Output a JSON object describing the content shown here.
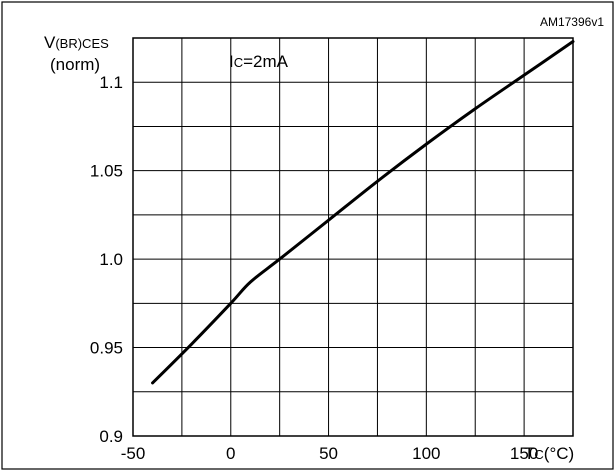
{
  "figure_id": "AM17396v1",
  "ylabel": {
    "symbol": "V",
    "subscript": "(BR)CES",
    "unit": "(norm)"
  },
  "xlabel": {
    "symbol": "T",
    "subscript": "C",
    "unit": "(°C)"
  },
  "annotation": {
    "symbol": "I",
    "subscript": "C",
    "rest": "=2mA"
  },
  "colors": {
    "curve": "#000000",
    "grid": "#000000",
    "background": "#ffffff"
  },
  "chart_data": {
    "type": "line",
    "title": "",
    "x_ticks": [
      -50,
      0,
      50,
      100,
      150
    ],
    "x_tick_labels": [
      "-50",
      "0",
      "50",
      "100",
      "150"
    ],
    "xlim": [
      -50,
      175
    ],
    "y_ticks": [
      0.9,
      0.95,
      1.0,
      1.05,
      1.1
    ],
    "y_tick_labels": [
      "0.9",
      "0.95",
      "1.0",
      "1.05",
      "1.1"
    ],
    "ylim": [
      0.9,
      1.125
    ],
    "grid": true,
    "series": [
      {
        "x": [
          -40,
          -20,
          0,
          10,
          25,
          50,
          75,
          100,
          125,
          150,
          175
        ],
        "y": [
          0.93,
          0.952,
          0.975,
          0.987,
          1.0,
          1.022,
          1.044,
          1.065,
          1.085,
          1.104,
          1.123
        ]
      }
    ]
  }
}
